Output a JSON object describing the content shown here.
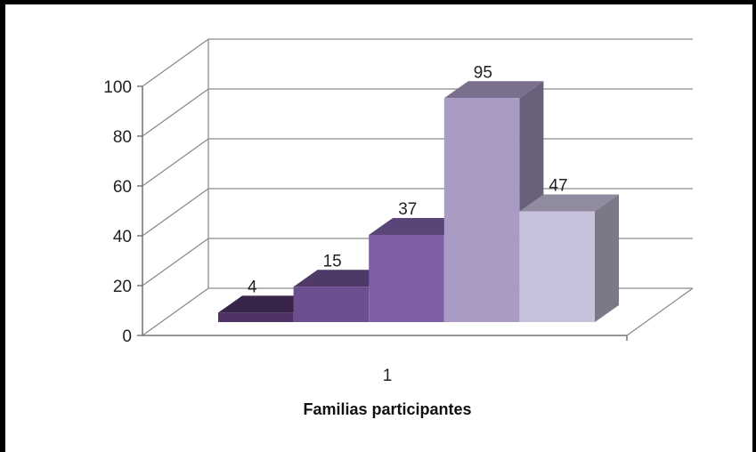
{
  "chart_data": {
    "type": "bar",
    "style": "3d-column",
    "categories": [
      "1"
    ],
    "series": [
      {
        "values": [
          4
        ],
        "color": "#4f3367"
      },
      {
        "values": [
          15
        ],
        "color": "#6c4f8f"
      },
      {
        "values": [
          37
        ],
        "color": "#7e5fa6"
      },
      {
        "values": [
          95
        ],
        "color": "#a99bc4"
      },
      {
        "values": [
          47
        ],
        "color": "#c8c1dc"
      }
    ],
    "data_labels": [
      "4",
      "15",
      "37",
      "95",
      "47"
    ],
    "xlabel": "Familias participantes",
    "ylabel": "",
    "ylim": [
      0,
      100
    ],
    "yticks": [
      0,
      20,
      40,
      60,
      80,
      100
    ],
    "grid": true,
    "legend": "none"
  }
}
